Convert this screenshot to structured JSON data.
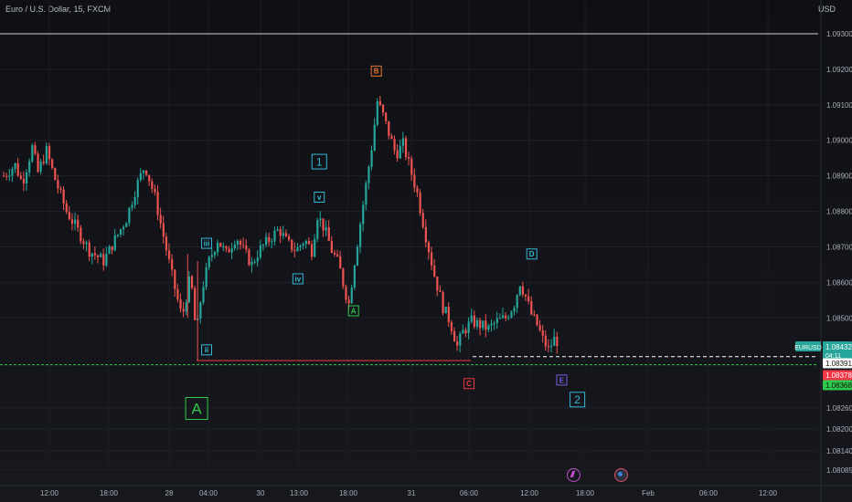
{
  "header": {
    "symbol_title": "Euro / U.S. Dollar, 15, FXCM",
    "currency": "USD"
  },
  "chart_data": {
    "type": "candlestick",
    "symbol": "EURUSD",
    "interval": "15",
    "ylim": [
      1.0804,
      1.0936
    ],
    "y_ticks": [
      "1.09300",
      "1.09200",
      "1.09100",
      "1.09000",
      "1.08900",
      "1.08800",
      "1.08700",
      "1.08600",
      "1.08500",
      "1.08260",
      "1.08200",
      "1.08140",
      "1.08085"
    ],
    "x_ticks": [
      "12:00",
      "18:00",
      "28",
      "04:00",
      "30",
      "13:00",
      "18:00",
      "31",
      "06:00",
      "12:00",
      "18:00",
      "Feb",
      "06:00",
      "12:00"
    ],
    "price_path": [
      [
        0,
        1.089
      ],
      [
        0.8,
        1.0893
      ],
      [
        1.3,
        1.0888
      ],
      [
        2.0,
        1.0898
      ],
      [
        2.4,
        1.0891
      ],
      [
        3.0,
        1.0897
      ],
      [
        3.6,
        1.0889
      ],
      [
        4.4,
        1.088
      ],
      [
        5.0,
        1.0876
      ],
      [
        6.0,
        1.0869
      ],
      [
        7.0,
        1.0866
      ],
      [
        7.8,
        1.0872
      ],
      [
        8.6,
        1.0878
      ],
      [
        9.3,
        1.0887
      ],
      [
        9.9,
        1.0893
      ],
      [
        10.6,
        1.0884
      ],
      [
        11.2,
        1.0873
      ],
      [
        11.9,
        1.086
      ],
      [
        12.5,
        1.085
      ],
      [
        13.1,
        1.0862
      ],
      [
        13.5,
        1.0845
      ],
      [
        13.9,
        1.0858
      ],
      [
        14.4,
        1.0866
      ],
      [
        15.0,
        1.0872
      ],
      [
        15.6,
        1.0868
      ],
      [
        16.3,
        1.0873
      ],
      [
        16.8,
        1.0869
      ],
      [
        17.4,
        1.0865
      ],
      [
        17.9,
        1.0869
      ],
      [
        18.6,
        1.0872
      ],
      [
        19.3,
        1.0875
      ],
      [
        19.9,
        1.0871
      ],
      [
        20.5,
        1.0869
      ],
      [
        21.1,
        1.0872
      ],
      [
        21.6,
        1.0869
      ],
      [
        22.0,
        1.0879
      ],
      [
        22.5,
        1.0875
      ],
      [
        23.0,
        1.0869
      ],
      [
        23.5,
        1.0865
      ],
      [
        23.9,
        1.0858
      ],
      [
        24.2,
        1.0854
      ],
      [
        24.6,
        1.0866
      ],
      [
        25.2,
        1.0882
      ],
      [
        25.8,
        1.0898
      ],
      [
        26.2,
        1.0911
      ],
      [
        26.6,
        1.0907
      ],
      [
        27.0,
        1.0902
      ],
      [
        27.5,
        1.0896
      ],
      [
        28.0,
        1.0899
      ],
      [
        28.5,
        1.0892
      ],
      [
        29.0,
        1.0885
      ],
      [
        29.6,
        1.0873
      ],
      [
        30.2,
        1.0862
      ],
      [
        30.8,
        1.0853
      ],
      [
        31.3,
        1.0849
      ],
      [
        31.8,
        1.0842
      ],
      [
        32.2,
        1.0846
      ],
      [
        32.8,
        1.0849
      ],
      [
        33.4,
        1.0848
      ],
      [
        34.0,
        1.0847
      ],
      [
        34.6,
        1.0849
      ],
      [
        35.2,
        1.085
      ],
      [
        35.8,
        1.0854
      ],
      [
        36.2,
        1.086
      ],
      [
        36.6,
        1.0856
      ],
      [
        37.0,
        1.0851
      ],
      [
        37.4,
        1.0848
      ],
      [
        37.8,
        1.0844
      ],
      [
        38.2,
        1.0841
      ],
      [
        38.6,
        1.0844
      ],
      [
        39.0,
        1.0843
      ]
    ],
    "horizontal_levels": [
      {
        "name": "top-line",
        "value": 1.093,
        "style": "solid",
        "color": "#cfd2d8"
      },
      {
        "name": "support-line",
        "value": 1.0838,
        "style": "solid",
        "color": "#f23645"
      },
      {
        "name": "c-e-line",
        "value": 1.08391,
        "style": "dashed",
        "color": "#ffffff"
      },
      {
        "name": "green-line",
        "value": 1.08368,
        "style": "dashed",
        "color": "#2ec84a"
      }
    ],
    "wave_labels": [
      {
        "text": "B",
        "t": 26.1,
        "price": 1.09195,
        "color": "#e8772e",
        "size": "small"
      },
      {
        "text": "1",
        "t": 22.1,
        "price": 1.0894,
        "color": "#35b7d6",
        "size": "medium"
      },
      {
        "text": "v",
        "t": 22.1,
        "price": 1.0884,
        "color": "#35b7d6",
        "size": "small"
      },
      {
        "text": "iii",
        "t": 14.2,
        "price": 1.0871,
        "color": "#35b7d6",
        "size": "small"
      },
      {
        "text": "iv",
        "t": 20.6,
        "price": 1.0861,
        "color": "#35b7d6",
        "size": "small"
      },
      {
        "text": "A",
        "t": 24.5,
        "price": 1.0852,
        "color": "#2ec84a",
        "size": "small"
      },
      {
        "text": "D",
        "t": 37.0,
        "price": 1.0868,
        "color": "#35b7d6",
        "size": "small"
      },
      {
        "text": "ii",
        "t": 14.2,
        "price": 1.0841,
        "color": "#35b7d6",
        "size": "small"
      },
      {
        "text": "C",
        "t": 32.6,
        "price": 1.08315,
        "color": "#f23645",
        "size": "small"
      },
      {
        "text": "E",
        "t": 39.1,
        "price": 1.08325,
        "color": "#7a5ce0",
        "size": "small"
      },
      {
        "text": "2",
        "t": 40.2,
        "price": 1.0827,
        "color": "#35b7d6",
        "size": "medium"
      },
      {
        "text": "A",
        "t": 13.5,
        "price": 1.08245,
        "color": "#2ec84a",
        "size": "large"
      }
    ],
    "price_tags": [
      {
        "text": "EURUSD",
        "value_text": "1.08432",
        "sub": "04:11",
        "price": 1.08432,
        "bg": "#26a69a",
        "color": "#ffffff"
      },
      {
        "text": "",
        "value_text": "1.08391",
        "price": 1.08391,
        "bg": "#ffffff",
        "color": "#111111"
      },
      {
        "text": "",
        "value_text": "1.08378",
        "price": 1.08378,
        "bg": "#f23645",
        "color": "#ffffff"
      },
      {
        "text": "",
        "value_text": "1.08368",
        "price": 1.08368,
        "bg": "#2ec84a",
        "color": "#111111"
      }
    ],
    "up_color": "#26a69a",
    "down_color": "#ef5350"
  }
}
